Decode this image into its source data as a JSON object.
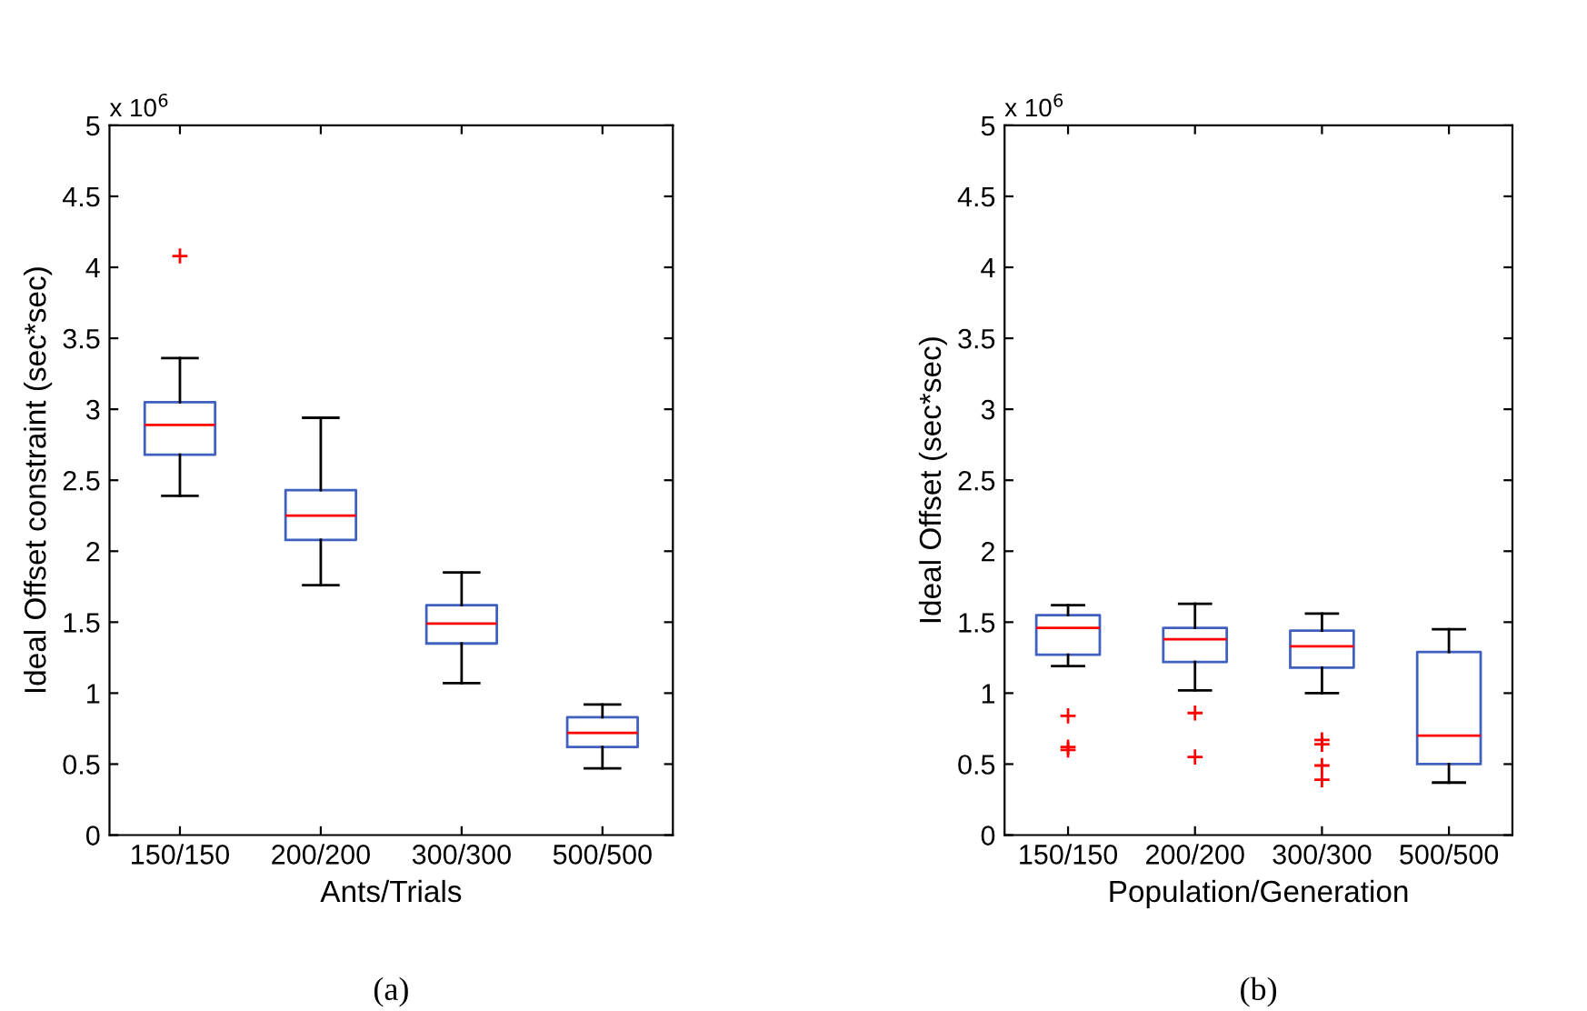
{
  "chart_data": [
    {
      "type": "box",
      "categories": [
        "150/150",
        "200/200",
        "300/300",
        "500/500"
      ],
      "xlabel": "Ants/Trials",
      "ylabel": "Ideal Offset constraint (sec*sec)",
      "ylim": [
        0,
        5
      ],
      "yticks": [
        0,
        0.5,
        1,
        1.5,
        2,
        2.5,
        3,
        3.5,
        4,
        4.5,
        5
      ],
      "annotations": [
        "x 10$^{6}$",
        "(a)"
      ],
      "series": [
        {
          "color": "#4060c0",
          "boxes": [
            {
              "low": 2.39,
              "q1": 2.68,
              "median": 2.89,
              "q3": 3.05,
              "high": 3.36,
              "outliers": [
                4.08
              ]
            },
            {
              "low": 1.76,
              "q1": 2.08,
              "median": 2.25,
              "q3": 2.43,
              "high": 2.94
            },
            {
              "low": 1.07,
              "q1": 1.35,
              "median": 1.49,
              "q3": 1.62,
              "high": 1.85
            },
            {
              "low": 0.47,
              "q1": 0.62,
              "median": 0.72,
              "q3": 0.83,
              "high": 0.92
            }
          ]
        }
      ]
    },
    {
      "type": "box",
      "categories": [
        "150/150",
        "200/200",
        "300/300",
        "500/500"
      ],
      "xlabel": "Population/Generation",
      "ylabel": "Ideal Offset (sec*sec)",
      "ylim": [
        0,
        5
      ],
      "yticks": [
        0,
        0.5,
        1,
        1.5,
        2,
        2.5,
        3,
        3.5,
        4,
        4.5,
        5
      ],
      "annotations": [
        "x 10$^{6}$",
        "(b)"
      ],
      "series": [
        {
          "color": "#4060c0",
          "boxes": [
            {
              "low": 1.19,
              "q1": 1.27,
              "median": 1.46,
              "q3": 1.55,
              "high": 1.62,
              "outliers": [
                0.84,
                0.62,
                0.6
              ]
            },
            {
              "low": 1.02,
              "q1": 1.22,
              "median": 1.38,
              "q3": 1.46,
              "high": 1.63,
              "outliers": [
                0.86,
                0.55
              ]
            },
            {
              "low": 1.0,
              "q1": 1.18,
              "median": 1.33,
              "q3": 1.44,
              "high": 1.56,
              "outliers": [
                0.67,
                0.64,
                0.49,
                0.39
              ]
            },
            {
              "low": 0.37,
              "q1": 0.5,
              "median": 0.7,
              "q3": 1.29,
              "high": 1.45
            }
          ]
        }
      ]
    }
  ]
}
